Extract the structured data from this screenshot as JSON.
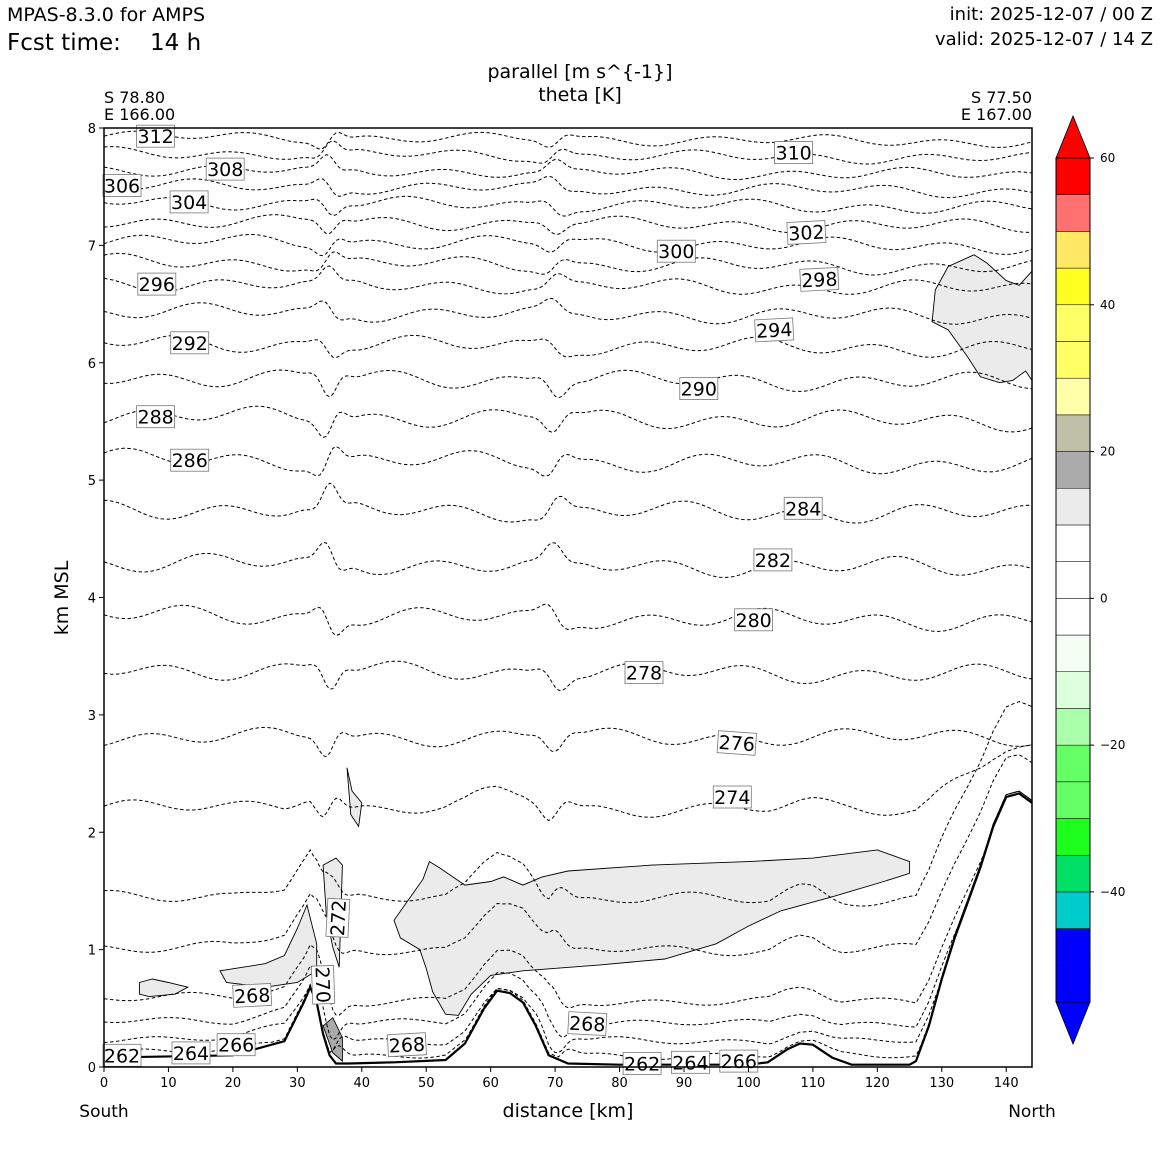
{
  "header": {
    "model": "MPAS-8.3.0 for AMPS",
    "fcst_label": "Fcst time:",
    "fcst_value": "14 h",
    "init": "init: 2025-12-07 / 00 Z",
    "valid": "valid: 2025-12-07 / 14 Z"
  },
  "chart_data": {
    "type": "contour",
    "title_line1": "parallel [m s^{-1}]",
    "title_line2": "theta [K]",
    "xlabel": "distance [km]",
    "ylabel": "km MSL",
    "xlim": [
      0,
      144
    ],
    "ylim": [
      0,
      8
    ],
    "xticks": [
      0,
      10,
      20,
      30,
      40,
      50,
      60,
      70,
      80,
      90,
      100,
      110,
      120,
      130,
      140
    ],
    "yticks": [
      0,
      1,
      2,
      3,
      4,
      5,
      6,
      7,
      8
    ],
    "grid": false,
    "endpoints": {
      "left": {
        "lat": "S 78.80",
        "lon": "E 166.00",
        "direction": "South"
      },
      "right": {
        "lat": "S 77.50",
        "lon": "E 167.00",
        "direction": "North"
      }
    },
    "colorbar": {
      "ticks": [
        -40,
        -20,
        0,
        20,
        40,
        60
      ],
      "tick_labels": [
        "−40",
        "−20",
        "0",
        "20",
        "40",
        "60"
      ],
      "levels": [
        -55,
        -50,
        -45,
        -40,
        -35,
        -30,
        -25,
        -20,
        -15,
        -10,
        -5,
        0,
        5,
        10,
        15,
        20,
        25,
        30,
        35,
        40,
        45,
        50,
        55,
        60
      ],
      "colors": [
        "#0000ff",
        "#00cccc",
        "#00e066",
        "#1eff1e",
        "#66ff66",
        "#aaffaa",
        "#ddffdd",
        "#f2fff2",
        "#ffffff",
        "#ffffff",
        "#ebebeb",
        "#aaaaaa",
        "#c0c0a8",
        "#ffffaa",
        "#ffff66",
        "#ffff22",
        "#ffe866",
        "#ff7070",
        "#ff0000"
      ],
      "extend": "both"
    },
    "theta_contours": [
      {
        "level": 312,
        "base": 7.93
      },
      {
        "level": 310,
        "base": 7.79
      },
      {
        "level": 308,
        "base": 7.65
      },
      {
        "level": 306,
        "base": 7.51
      },
      {
        "level": 304,
        "base": 7.37
      },
      {
        "level": 302,
        "base": 7.21
      },
      {
        "level": 300,
        "base": 7.04
      },
      {
        "level": 298,
        "base": 6.86
      },
      {
        "level": 296,
        "base": 6.68
      },
      {
        "level": 294,
        "base": 6.44
      },
      {
        "level": 292,
        "base": 6.17
      },
      {
        "level": 290,
        "base": 5.88
      },
      {
        "level": 288,
        "base": 5.55
      },
      {
        "level": 286,
        "base": 5.18
      },
      {
        "level": 284,
        "base": 4.76
      },
      {
        "level": 282,
        "base": 4.3
      },
      {
        "level": 280,
        "base": 3.85
      },
      {
        "level": 278,
        "base": 3.39
      },
      {
        "level": 276,
        "base": 2.81
      },
      {
        "level": 274,
        "base": 2.2
      },
      {
        "level": 272,
        "base": 1.43
      },
      {
        "level": 270,
        "base": 1.0
      },
      {
        "level": 268,
        "base": 0.56
      },
      {
        "level": 266,
        "base": 0.37
      },
      {
        "level": 264,
        "base": 0.22
      },
      {
        "level": 262,
        "base": 0.1
      }
    ],
    "contour_labels": [
      {
        "text": "312",
        "x": 8.0,
        "y": 7.93,
        "rot": 0
      },
      {
        "text": "310",
        "x": 107.0,
        "y": 7.79,
        "rot": 0
      },
      {
        "text": "308",
        "x": 18.8,
        "y": 7.65,
        "rot": 0
      },
      {
        "text": "306",
        "x": 2.8,
        "y": 7.51,
        "rot": 0
      },
      {
        "text": "304",
        "x": 13.2,
        "y": 7.37,
        "rot": 0
      },
      {
        "text": "302",
        "x": 109.0,
        "y": 7.11,
        "rot": -3
      },
      {
        "text": "300",
        "x": 88.8,
        "y": 6.95,
        "rot": 0
      },
      {
        "text": "298",
        "x": 111.0,
        "y": 6.71,
        "rot": -3
      },
      {
        "text": "296",
        "x": 8.2,
        "y": 6.67,
        "rot": 0
      },
      {
        "text": "294",
        "x": 104.0,
        "y": 6.28,
        "rot": -3
      },
      {
        "text": "292",
        "x": 13.3,
        "y": 6.17,
        "rot": 0
      },
      {
        "text": "290",
        "x": 92.3,
        "y": 5.78,
        "rot": 0
      },
      {
        "text": "288",
        "x": 8.0,
        "y": 5.54,
        "rot": 0
      },
      {
        "text": "286",
        "x": 13.3,
        "y": 5.17,
        "rot": 0
      },
      {
        "text": "284",
        "x": 108.5,
        "y": 4.76,
        "rot": 0
      },
      {
        "text": "282",
        "x": 103.8,
        "y": 4.32,
        "rot": 0
      },
      {
        "text": "280",
        "x": 100.8,
        "y": 3.81,
        "rot": 0
      },
      {
        "text": "278",
        "x": 83.8,
        "y": 3.36,
        "rot": 0
      },
      {
        "text": "276",
        "x": 98.2,
        "y": 2.76,
        "rot": 4
      },
      {
        "text": "274",
        "x": 97.5,
        "y": 2.3,
        "rot": 0
      },
      {
        "text": "272",
        "x": 36.3,
        "y": 1.27,
        "rot": -87
      },
      {
        "text": "270",
        "x": 34.0,
        "y": 0.7,
        "rot": 88
      },
      {
        "text": "268",
        "x": 23.0,
        "y": 0.61,
        "rot": -3
      },
      {
        "text": "268",
        "x": 75.0,
        "y": 0.37,
        "rot": 3
      },
      {
        "text": "268",
        "x": 47.0,
        "y": 0.19,
        "rot": -3
      },
      {
        "text": "266",
        "x": 20.5,
        "y": 0.19,
        "rot": 0
      },
      {
        "text": "264",
        "x": 13.5,
        "y": 0.12,
        "rot": 0
      },
      {
        "text": "262",
        "x": 2.8,
        "y": 0.1,
        "rot": 0
      },
      {
        "text": "262",
        "x": 83.5,
        "y": 0.03,
        "rot": 0
      },
      {
        "text": "264",
        "x": 91.0,
        "y": 0.04,
        "rot": 0
      },
      {
        "text": "266",
        "x": 98.5,
        "y": 0.05,
        "rot": 0
      }
    ],
    "terrain_profile": [
      [
        0,
        0.08
      ],
      [
        20,
        0.1
      ],
      [
        28,
        0.22
      ],
      [
        31,
        0.55
      ],
      [
        32,
        0.68
      ],
      [
        33,
        0.55
      ],
      [
        34,
        0.28
      ],
      [
        35,
        0.1
      ],
      [
        36,
        0.03
      ],
      [
        38,
        0.03
      ],
      [
        45,
        0.04
      ],
      [
        53,
        0.06
      ],
      [
        56,
        0.2
      ],
      [
        59,
        0.5
      ],
      [
        61,
        0.65
      ],
      [
        63,
        0.63
      ],
      [
        65,
        0.55
      ],
      [
        67,
        0.35
      ],
      [
        69,
        0.1
      ],
      [
        72,
        0.03
      ],
      [
        80,
        0.02
      ],
      [
        100,
        0.02
      ],
      [
        103,
        0.04
      ],
      [
        106,
        0.15
      ],
      [
        108,
        0.2
      ],
      [
        110,
        0.19
      ],
      [
        113,
        0.08
      ],
      [
        116,
        0.02
      ],
      [
        125,
        0.02
      ],
      [
        126,
        0.05
      ],
      [
        128,
        0.35
      ],
      [
        130,
        0.75
      ],
      [
        132,
        1.1
      ],
      [
        134,
        1.4
      ],
      [
        136,
        1.7
      ],
      [
        138,
        2.05
      ],
      [
        140,
        2.3
      ],
      [
        142,
        2.33
      ],
      [
        144,
        2.25
      ]
    ],
    "wind_regions": [
      {
        "bin": "5-10",
        "points": [
          [
            50.5,
            1.75
          ],
          [
            52,
            1.7
          ],
          [
            56,
            1.55
          ],
          [
            60,
            1.58
          ],
          [
            62,
            1.62
          ],
          [
            65,
            1.55
          ],
          [
            68,
            1.62
          ],
          [
            72,
            1.67
          ],
          [
            85,
            1.72
          ],
          [
            100,
            1.75
          ],
          [
            110,
            1.78
          ],
          [
            120,
            1.85
          ],
          [
            125,
            1.75
          ],
          [
            125,
            1.65
          ],
          [
            121,
            1.58
          ],
          [
            113,
            1.45
          ],
          [
            105,
            1.33
          ],
          [
            100,
            1.2
          ],
          [
            95,
            1.05
          ],
          [
            87,
            0.92
          ],
          [
            77,
            0.87
          ],
          [
            65,
            0.82
          ],
          [
            60,
            0.78
          ],
          [
            57,
            0.62
          ],
          [
            55,
            0.44
          ],
          [
            53,
            0.45
          ],
          [
            51,
            0.64
          ],
          [
            50,
            0.84
          ],
          [
            49,
            1.0
          ],
          [
            46,
            1.1
          ],
          [
            45,
            1.25
          ],
          [
            49.5,
            1.6
          ]
        ]
      },
      {
        "bin": "5-10",
        "points": [
          [
            128.5,
            6.35
          ],
          [
            129,
            6.62
          ],
          [
            131,
            6.82
          ],
          [
            135,
            6.92
          ],
          [
            137,
            6.85
          ],
          [
            140,
            6.7
          ],
          [
            142,
            6.66
          ],
          [
            144,
            6.78
          ],
          [
            144,
            5.85
          ],
          [
            143,
            5.93
          ],
          [
            141,
            5.85
          ],
          [
            139,
            5.83
          ],
          [
            136,
            5.88
          ],
          [
            134,
            6.05
          ],
          [
            131,
            6.28
          ]
        ]
      },
      {
        "bin": "5-10",
        "points": [
          [
            5.5,
            0.72
          ],
          [
            7.5,
            0.75
          ],
          [
            10,
            0.72
          ],
          [
            13,
            0.68
          ],
          [
            11,
            0.62
          ],
          [
            7,
            0.6
          ],
          [
            5.5,
            0.62
          ]
        ]
      },
      {
        "bin": "5-10",
        "points": [
          [
            18,
            0.82
          ],
          [
            25,
            0.88
          ],
          [
            28,
            0.95
          ],
          [
            30,
            1.18
          ],
          [
            31.5,
            1.38
          ],
          [
            33,
            1.05
          ],
          [
            33,
            0.82
          ],
          [
            30,
            0.72
          ],
          [
            25,
            0.68
          ],
          [
            19,
            0.72
          ]
        ]
      },
      {
        "bin": "5-10",
        "points": [
          [
            34,
            1.72
          ],
          [
            36,
            1.78
          ],
          [
            37,
            1.72
          ],
          [
            36.5,
            0.85
          ],
          [
            35.5,
            1.02
          ],
          [
            34.5,
            1.3
          ]
        ]
      },
      {
        "bin": "5-10",
        "points": [
          [
            37.7,
            2.55
          ],
          [
            38.5,
            2.35
          ],
          [
            40,
            2.25
          ],
          [
            39.5,
            2.05
          ],
          [
            38.3,
            2.15
          ]
        ]
      },
      {
        "bin": "10-15",
        "points": [
          [
            34,
            0.35
          ],
          [
            35.5,
            0.12
          ],
          [
            37,
            0.05
          ],
          [
            37,
            0.25
          ],
          [
            35.5,
            0.42
          ]
        ]
      }
    ]
  }
}
